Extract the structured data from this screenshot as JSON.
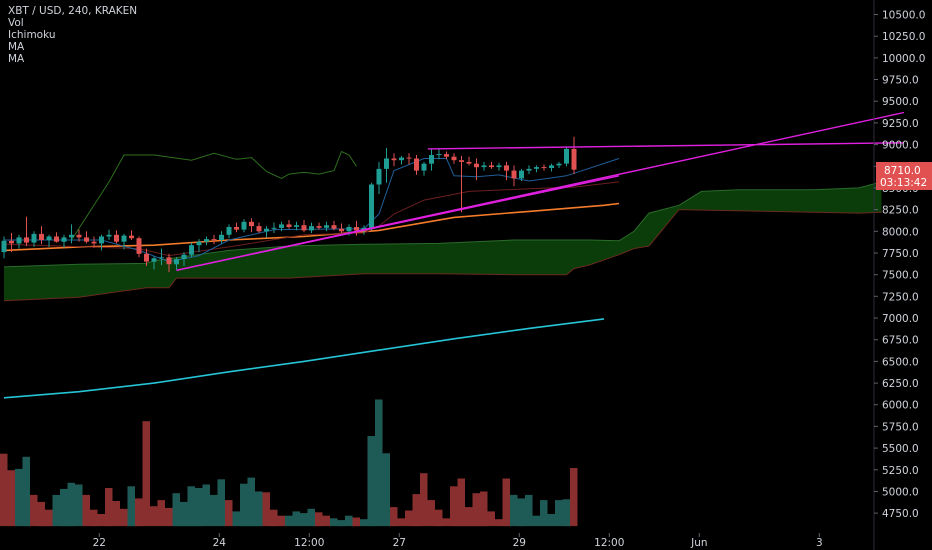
{
  "legend": {
    "symbol": "XBT / USD, 240, KRAKEN",
    "vol": "Vol",
    "ichimoku": "Ichimoku",
    "ma1": "MA",
    "ma2": "MA"
  },
  "price_badge": {
    "value": "8710.0",
    "countdown": "03:13:42",
    "color": "#e25151"
  },
  "colors": {
    "up": "#1f9e95",
    "down": "#e25151",
    "vol_up": "#1e5b57",
    "vol_down": "#8a2f2f",
    "cloud": "#0b3d0b",
    "ma_short": "#f57c2a",
    "ma_long": "#25c4d6",
    "trend": "#e020e0",
    "lagging": "#2e6f1e",
    "tenkan": "#1f5f99",
    "kijun": "#6b1f1f",
    "background": "#000000",
    "axis_text": "#cfd3da"
  },
  "chart_data": {
    "type": "candlestick",
    "y_axis_ticks": [
      "10500.0",
      "10250.0",
      "10000.0",
      "9750.0",
      "9500.0",
      "9250.0",
      "9000.0",
      "8750.0",
      "8500.0",
      "8250.0",
      "8000.0",
      "7750.0",
      "7500.0",
      "7250.0",
      "7000.0",
      "6750.0",
      "6500.0",
      "6250.0",
      "6000.0",
      "5750.0",
      "5500.0",
      "5250.0",
      "5000.0",
      "4750.0"
    ],
    "x_axis_labels": [
      {
        "label": "22",
        "x_index": 12.7
      },
      {
        "label": "24",
        "x_index": 28.7
      },
      {
        "label": "12:00",
        "x_index": 40.7
      },
      {
        "label": "27",
        "x_index": 52.7
      },
      {
        "label": "29",
        "x_index": 68.7
      },
      {
        "label": "12:00",
        "x_index": 80.7
      },
      {
        "label": "Jun",
        "x_index": 92.7
      },
      {
        "label": "3",
        "x_index": 108.7
      }
    ],
    "candles": [
      [
        7760,
        7940,
        7690,
        7890
      ],
      [
        7890,
        7980,
        7760,
        7860
      ],
      [
        7860,
        7960,
        7800,
        7930
      ],
      [
        7930,
        8170,
        7830,
        7870
      ],
      [
        7870,
        8000,
        7820,
        7970
      ],
      [
        7970,
        8060,
        7850,
        7900
      ],
      [
        7900,
        7960,
        7820,
        7940
      ],
      [
        7940,
        7990,
        7870,
        7880
      ],
      [
        7880,
        7960,
        7810,
        7930
      ],
      [
        7930,
        8080,
        7860,
        7960
      ],
      [
        7960,
        8020,
        7880,
        7930
      ],
      [
        7930,
        8000,
        7860,
        7880
      ],
      [
        7880,
        7940,
        7810,
        7860
      ],
      [
        7860,
        7960,
        7780,
        7940
      ],
      [
        7940,
        8020,
        7900,
        7960
      ],
      [
        7960,
        8010,
        7860,
        7880
      ],
      [
        7880,
        7970,
        7790,
        7950
      ],
      [
        7950,
        8010,
        7900,
        7920
      ],
      [
        7920,
        7940,
        7700,
        7740
      ],
      [
        7740,
        7800,
        7600,
        7650
      ],
      [
        7650,
        7710,
        7560,
        7690
      ],
      [
        7690,
        7800,
        7610,
        7700
      ],
      [
        7700,
        7740,
        7530,
        7620
      ],
      [
        7620,
        7700,
        7560,
        7680
      ],
      [
        7680,
        7760,
        7600,
        7730
      ],
      [
        7730,
        7870,
        7700,
        7840
      ],
      [
        7840,
        7910,
        7760,
        7880
      ],
      [
        7880,
        7940,
        7840,
        7910
      ],
      [
        7910,
        7960,
        7850,
        7900
      ],
      [
        7900,
        8000,
        7860,
        7960
      ],
      [
        7960,
        8080,
        7920,
        8050
      ],
      [
        8050,
        8100,
        7990,
        8020
      ],
      [
        8020,
        8140,
        7990,
        8110
      ],
      [
        8110,
        8150,
        7990,
        8060
      ],
      [
        8060,
        8100,
        7980,
        8000
      ],
      [
        8000,
        8060,
        7930,
        8030
      ],
      [
        8030,
        8100,
        7980,
        8040
      ],
      [
        8040,
        8110,
        8000,
        8080
      ],
      [
        8080,
        8130,
        8030,
        8050
      ],
      [
        8050,
        8110,
        8010,
        8070
      ],
      [
        8070,
        8130,
        7990,
        8010
      ],
      [
        8010,
        8100,
        7980,
        8060
      ],
      [
        8060,
        8100,
        8020,
        8040
      ],
      [
        8040,
        8110,
        8000,
        8070
      ],
      [
        8070,
        8120,
        8010,
        8030
      ],
      [
        8030,
        8090,
        7980,
        8000
      ],
      [
        8000,
        8080,
        7950,
        8050
      ],
      [
        8050,
        8120,
        7950,
        8010
      ],
      [
        8010,
        8070,
        7960,
        8040
      ],
      [
        8040,
        8560,
        8010,
        8540
      ],
      [
        8540,
        8800,
        8430,
        8720
      ],
      [
        8720,
        8960,
        8560,
        8840
      ],
      [
        8840,
        8900,
        8750,
        8820
      ],
      [
        8820,
        8870,
        8770,
        8850
      ],
      [
        8850,
        8900,
        8770,
        8840
      ],
      [
        8840,
        8880,
        8650,
        8700
      ],
      [
        8700,
        8800,
        8640,
        8780
      ],
      [
        8780,
        8950,
        8700,
        8880
      ],
      [
        8880,
        8960,
        8830,
        8890
      ],
      [
        8890,
        8920,
        8830,
        8860
      ],
      [
        8860,
        8900,
        8780,
        8820
      ],
      [
        8820,
        8870,
        8220,
        8800
      ],
      [
        8800,
        8860,
        8760,
        8780
      ],
      [
        8780,
        8840,
        8590,
        8740
      ],
      [
        8740,
        8800,
        8700,
        8760
      ],
      [
        8760,
        8800,
        8720,
        8740
      ],
      [
        8740,
        8790,
        8700,
        8760
      ],
      [
        8760,
        8800,
        8590,
        8700
      ],
      [
        8700,
        8760,
        8520,
        8610
      ],
      [
        8610,
        8720,
        8580,
        8700
      ],
      [
        8700,
        8760,
        8660,
        8720
      ],
      [
        8720,
        8760,
        8680,
        8740
      ],
      [
        8740,
        8770,
        8700,
        8730
      ],
      [
        8730,
        8780,
        8690,
        8760
      ],
      [
        8760,
        8800,
        8730,
        8780
      ],
      [
        8780,
        8970,
        8750,
        8950
      ],
      [
        8950,
        9090,
        8660,
        8710
      ]
    ],
    "volume": [
      {
        "v": 5435,
        "up": false
      },
      {
        "v": 5245,
        "up": false
      },
      {
        "v": 5260,
        "up": true
      },
      {
        "v": 5400,
        "up": true
      },
      {
        "v": 4960,
        "up": false
      },
      {
        "v": 4880,
        "up": false
      },
      {
        "v": 4790,
        "up": false
      },
      {
        "v": 4960,
        "up": true
      },
      {
        "v": 5030,
        "up": true
      },
      {
        "v": 5100,
        "up": true
      },
      {
        "v": 5080,
        "up": true
      },
      {
        "v": 4960,
        "up": false
      },
      {
        "v": 4790,
        "up": false
      },
      {
        "v": 4740,
        "up": false
      },
      {
        "v": 5040,
        "up": false
      },
      {
        "v": 4890,
        "up": false
      },
      {
        "v": 4800,
        "up": false
      },
      {
        "v": 5060,
        "up": true
      },
      {
        "v": 4920,
        "up": false
      },
      {
        "v": 5810,
        "up": false
      },
      {
        "v": 4830,
        "up": false
      },
      {
        "v": 4900,
        "up": false
      },
      {
        "v": 4810,
        "up": false
      },
      {
        "v": 4980,
        "up": true
      },
      {
        "v": 4880,
        "up": true
      },
      {
        "v": 5060,
        "up": true
      },
      {
        "v": 5040,
        "up": true
      },
      {
        "v": 5080,
        "up": true
      },
      {
        "v": 4960,
        "up": true
      },
      {
        "v": 5140,
        "up": true
      },
      {
        "v": 4900,
        "up": false
      },
      {
        "v": 4770,
        "up": true
      },
      {
        "v": 5090,
        "up": true
      },
      {
        "v": 5160,
        "up": true
      },
      {
        "v": 5000,
        "up": true
      },
      {
        "v": 4990,
        "up": false
      },
      {
        "v": 4790,
        "up": false
      },
      {
        "v": 4720,
        "up": false
      },
      {
        "v": 4720,
        "up": true
      },
      {
        "v": 4770,
        "up": true
      },
      {
        "v": 4750,
        "up": true
      },
      {
        "v": 4800,
        "up": true
      },
      {
        "v": 4760,
        "up": false
      },
      {
        "v": 4720,
        "up": false
      },
      {
        "v": 4690,
        "up": true
      },
      {
        "v": 4670,
        "up": true
      },
      {
        "v": 4720,
        "up": true
      },
      {
        "v": 4700,
        "up": false
      },
      {
        "v": 4680,
        "up": true
      },
      {
        "v": 5640,
        "up": true
      },
      {
        "v": 6060,
        "up": true
      },
      {
        "v": 5440,
        "up": true
      },
      {
        "v": 4820,
        "up": false
      },
      {
        "v": 4690,
        "up": false
      },
      {
        "v": 4780,
        "up": false
      },
      {
        "v": 4970,
        "up": false
      },
      {
        "v": 5210,
        "up": false
      },
      {
        "v": 4900,
        "up": false
      },
      {
        "v": 4790,
        "up": false
      },
      {
        "v": 4690,
        "up": false
      },
      {
        "v": 5060,
        "up": false
      },
      {
        "v": 5150,
        "up": false
      },
      {
        "v": 4820,
        "up": false
      },
      {
        "v": 4980,
        "up": false
      },
      {
        "v": 5000,
        "up": false
      },
      {
        "v": 4770,
        "up": false
      },
      {
        "v": 4680,
        "up": false
      },
      {
        "v": 5150,
        "up": false
      },
      {
        "v": 4960,
        "up": true
      },
      {
        "v": 4920,
        "up": true
      },
      {
        "v": 4960,
        "up": true
      },
      {
        "v": 4720,
        "up": true
      },
      {
        "v": 4900,
        "up": true
      },
      {
        "v": 4740,
        "up": true
      },
      {
        "v": 4900,
        "up": true
      },
      {
        "v": 4910,
        "up": true
      },
      {
        "v": 5270,
        "up": false
      }
    ],
    "ma_short": [
      [
        0,
        7780
      ],
      [
        10,
        7820
      ],
      [
        20,
        7840
      ],
      [
        30,
        7900
      ],
      [
        40,
        7940
      ],
      [
        50,
        8010
      ],
      [
        60,
        8160
      ],
      [
        70,
        8230
      ],
      [
        80,
        8300
      ],
      [
        82,
        8320
      ]
    ],
    "ma_long": [
      [
        0,
        6080
      ],
      [
        10,
        6150
      ],
      [
        20,
        6250
      ],
      [
        30,
        6380
      ],
      [
        40,
        6500
      ],
      [
        50,
        6630
      ],
      [
        60,
        6760
      ],
      [
        70,
        6880
      ],
      [
        80,
        6990
      ]
    ],
    "trend_lines": [
      [
        [
          23,
          7550
        ],
        [
          82,
          8640
        ]
      ],
      [
        [
          23,
          7550
        ],
        [
          120,
          9370
        ]
      ],
      [
        [
          56.5,
          8950
        ],
        [
          120,
          9020
        ]
      ]
    ],
    "cloud": {
      "span_a": [
        [
          0,
          7590
        ],
        [
          10,
          7620
        ],
        [
          19,
          7630
        ],
        [
          20,
          7660
        ],
        [
          30,
          7780
        ],
        [
          38,
          7830
        ],
        [
          48,
          7850
        ],
        [
          58,
          7860
        ],
        [
          68,
          7900
        ],
        [
          78,
          7900
        ],
        [
          82,
          7890
        ],
        [
          84,
          8000
        ],
        [
          86,
          8210
        ],
        [
          90,
          8300
        ],
        [
          93,
          8460
        ],
        [
          98,
          8480
        ],
        [
          108,
          8480
        ],
        [
          114,
          8500
        ],
        [
          117,
          8570
        ]
      ],
      "span_b": [
        [
          0,
          7200
        ],
        [
          10,
          7240
        ],
        [
          19,
          7350
        ],
        [
          20,
          7350
        ],
        [
          22,
          7350
        ],
        [
          23,
          7460
        ],
        [
          38,
          7460
        ],
        [
          48,
          7510
        ],
        [
          58,
          7510
        ],
        [
          68,
          7500
        ],
        [
          75,
          7500
        ],
        [
          76,
          7570
        ],
        [
          78,
          7610
        ],
        [
          82,
          7730
        ],
        [
          84,
          7800
        ],
        [
          86,
          7830
        ],
        [
          90,
          8250
        ],
        [
          114,
          8210
        ],
        [
          117,
          8220
        ]
      ]
    },
    "lagging_span": [
      [
        9,
        7900
      ],
      [
        14,
        8570
      ],
      [
        16,
        8880
      ],
      [
        20,
        8880
      ],
      [
        25,
        8820
      ],
      [
        28,
        8900
      ],
      [
        31,
        8830
      ],
      [
        33,
        8850
      ],
      [
        35,
        8690
      ],
      [
        37,
        8610
      ],
      [
        38,
        8660
      ],
      [
        40,
        8680
      ],
      [
        42,
        8660
      ],
      [
        44,
        8700
      ],
      [
        45,
        8920
      ],
      [
        46,
        8880
      ],
      [
        47,
        8750
      ]
    ],
    "tenkan": [
      [
        0,
        7900
      ],
      [
        13,
        7900
      ],
      [
        18,
        7780
      ],
      [
        22,
        7650
      ],
      [
        26,
        7720
      ],
      [
        30,
        7900
      ],
      [
        36,
        8020
      ],
      [
        48,
        8030
      ],
      [
        50,
        8200
      ],
      [
        52,
        8700
      ],
      [
        56,
        8840
      ],
      [
        59,
        8840
      ],
      [
        60,
        8640
      ],
      [
        63,
        8630
      ],
      [
        66,
        8650
      ],
      [
        70,
        8580
      ],
      [
        75,
        8640
      ],
      [
        82,
        8840
      ]
    ],
    "kijun": [
      [
        0,
        7850
      ],
      [
        18,
        7800
      ],
      [
        22,
        7720
      ],
      [
        30,
        7820
      ],
      [
        40,
        7960
      ],
      [
        48,
        7980
      ],
      [
        50,
        8060
      ],
      [
        52,
        8200
      ],
      [
        56,
        8360
      ],
      [
        62,
        8460
      ],
      [
        70,
        8490
      ],
      [
        76,
        8510
      ],
      [
        82,
        8570
      ]
    ],
    "ylim": [
      4600,
      10600
    ]
  }
}
